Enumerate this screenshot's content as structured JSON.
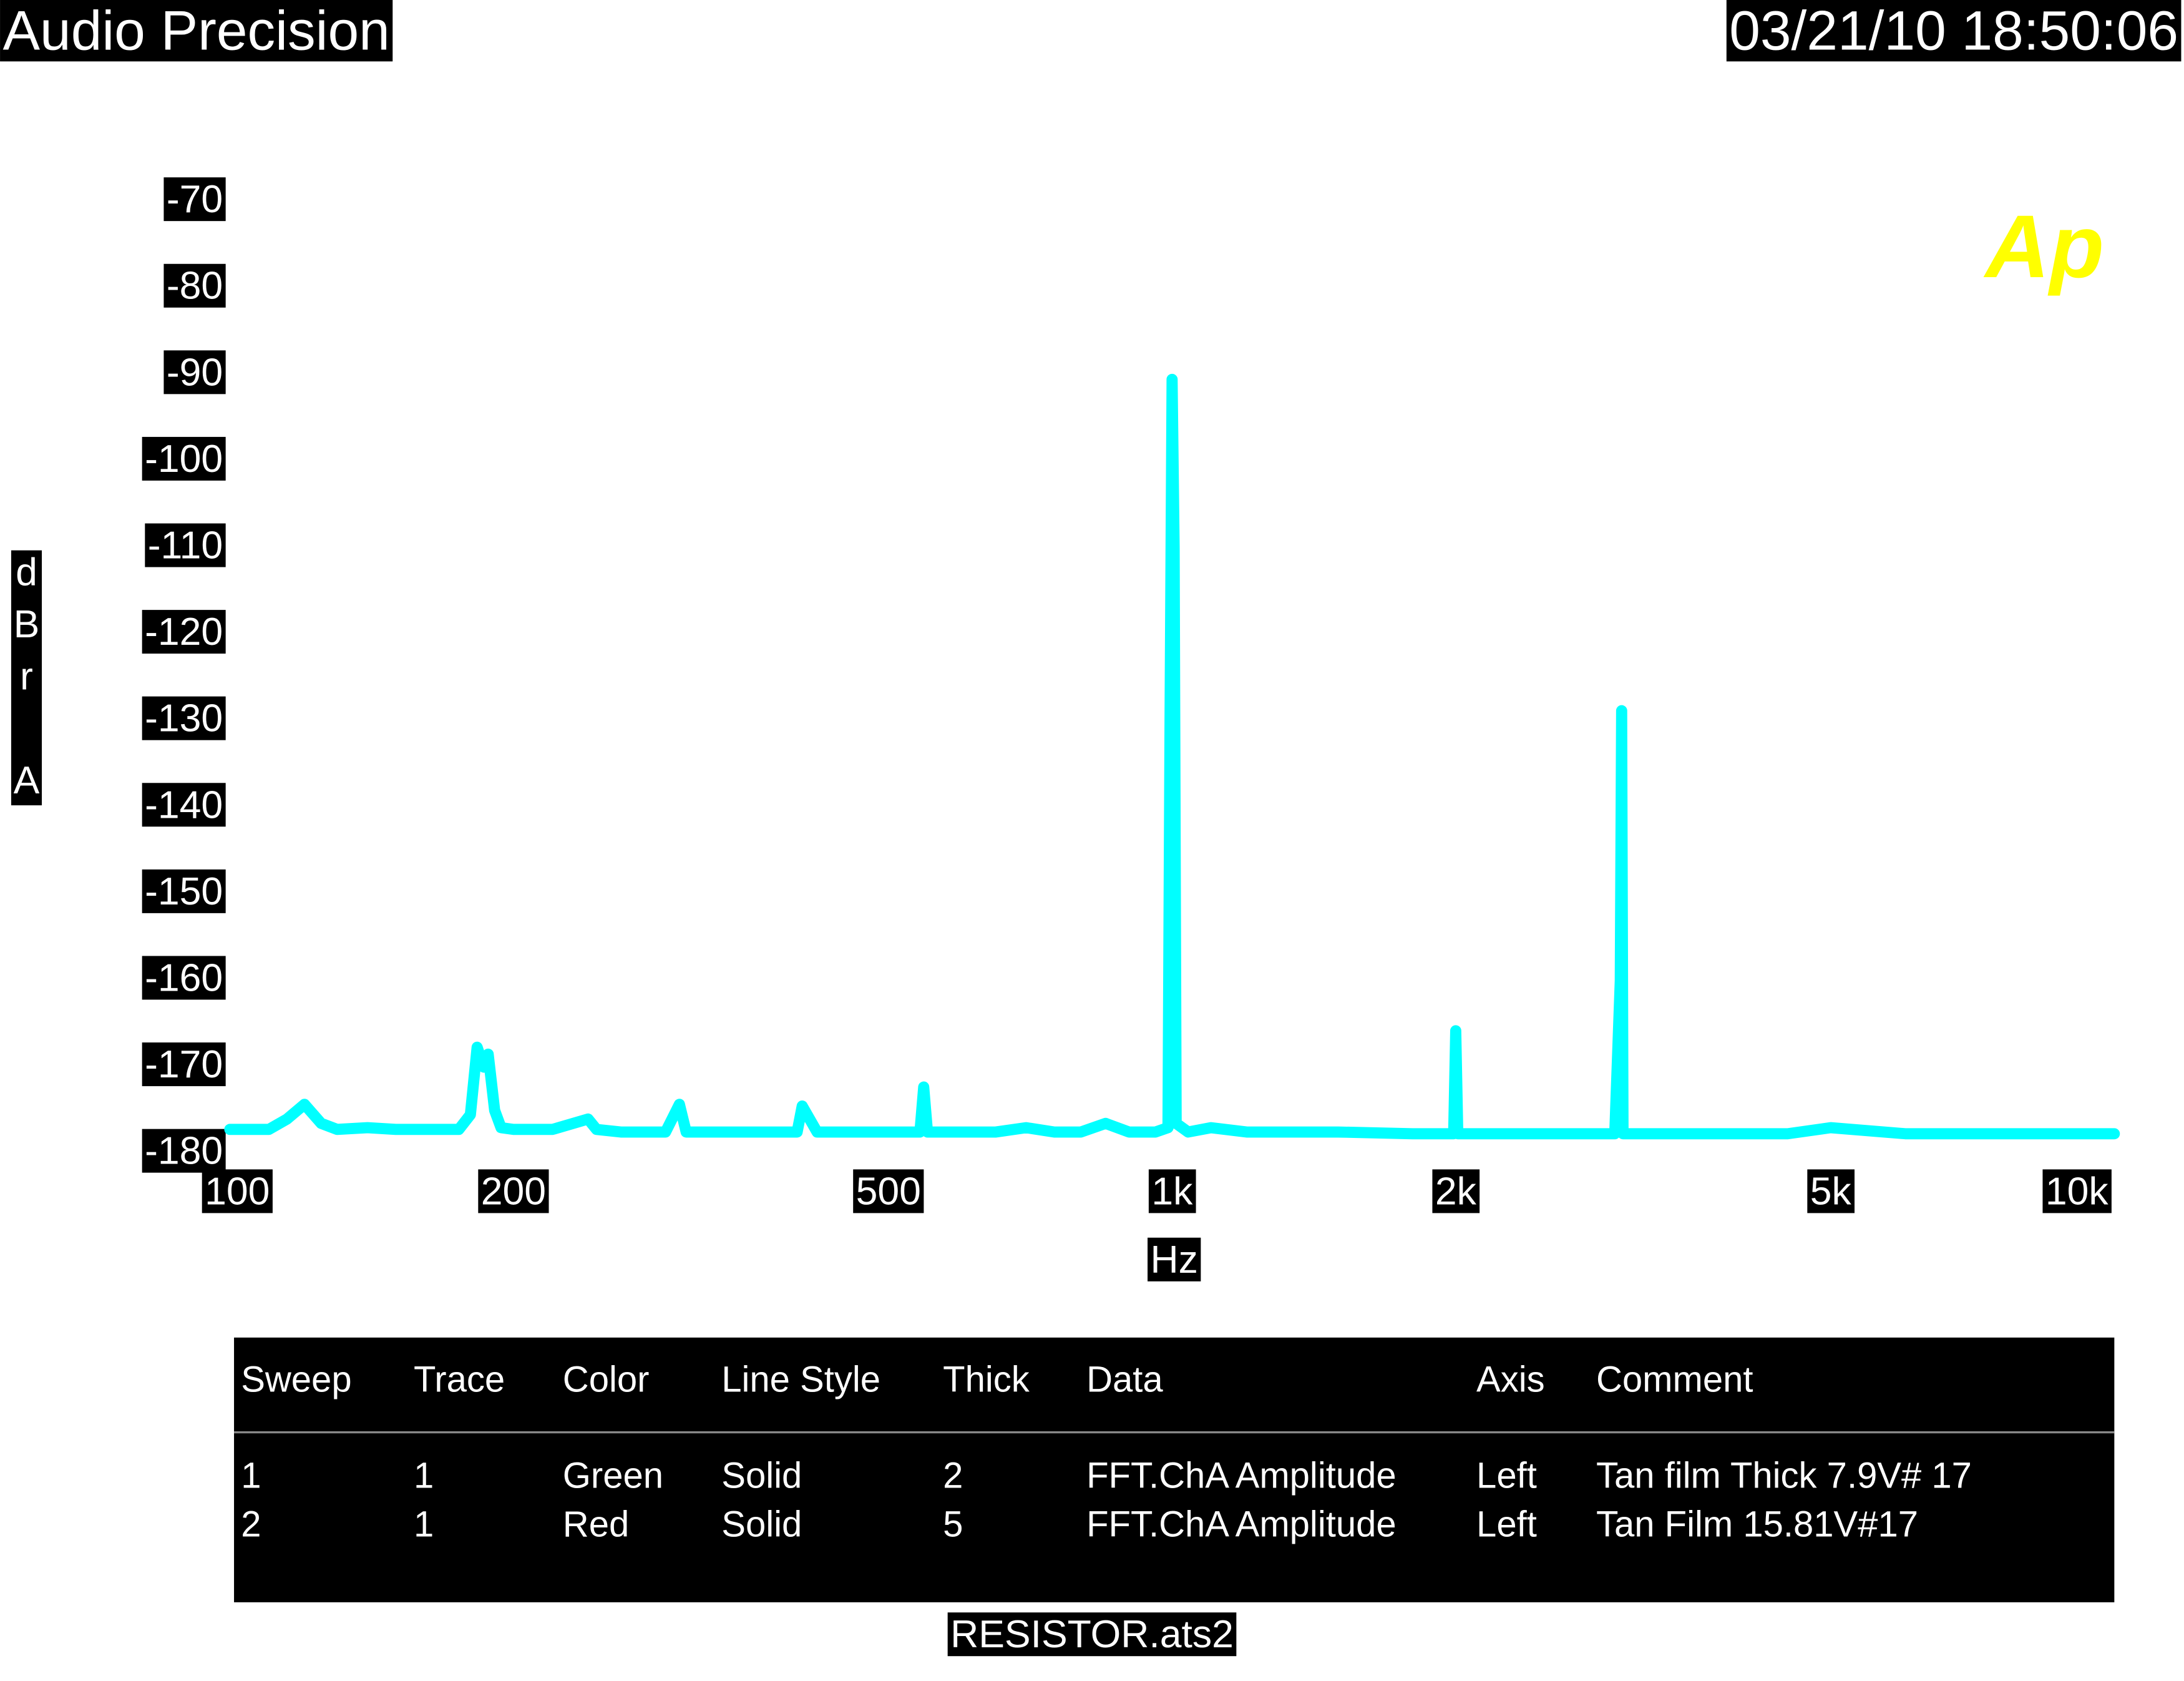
{
  "header": {
    "brand": "Audio Precision",
    "timestamp": "03/21/10 18:50:06",
    "logo": "Ap"
  },
  "chart_data": {
    "type": "line",
    "xlabel": "Hz",
    "ylabel": "dBr A",
    "xscale": "log",
    "xlim": [
      100,
      10000
    ],
    "ylim": [
      -180,
      -70
    ],
    "xticks": [
      100,
      200,
      500,
      {
        "value": 1000,
        "label": "1k"
      },
      {
        "value": 2000,
        "label": "2k"
      },
      {
        "value": 5000,
        "label": "5k"
      },
      {
        "value": 10000,
        "label": "10k"
      }
    ],
    "yticks": [
      -70,
      -80,
      -90,
      -100,
      -110,
      -120,
      -130,
      -140,
      -150,
      -160,
      -170,
      -180
    ],
    "x": [
      100,
      110,
      115,
      120,
      125,
      130,
      140,
      150,
      160,
      175,
      180,
      183,
      186,
      188,
      191,
      194,
      200,
      220,
      240,
      245,
      260,
      290,
      300,
      305,
      320,
      350,
      400,
      405,
      420,
      480,
      540,
      545,
      550,
      560,
      600,
      650,
      700,
      750,
      800,
      850,
      900,
      960,
      990,
      995,
      1000,
      1005,
      1010,
      1040,
      1100,
      1200,
      1300,
      1500,
      1800,
      1990,
      2000,
      2010,
      2200,
      2500,
      2950,
      2990,
      3000,
      3010,
      3100,
      3500,
      4000,
      4500,
      5000,
      6000,
      7000,
      8000,
      9000,
      10000
    ],
    "series": [
      {
        "color": "#00ffff",
        "values": [
          -177.2,
          -177.2,
          -176.0,
          -174.3,
          -176.5,
          -177.2,
          -177.0,
          -177.2,
          -177.2,
          -177.2,
          -175.5,
          -167.7,
          -170.0,
          -168.5,
          -175.0,
          -177.0,
          -177.2,
          -177.2,
          -176.0,
          -177.2,
          -177.5,
          -177.5,
          -174.3,
          -177.5,
          -177.5,
          -177.5,
          -177.5,
          -174.5,
          -177.5,
          -177.5,
          -177.5,
          -172.3,
          -177.5,
          -177.5,
          -177.5,
          -177.5,
          -177.0,
          -177.5,
          -177.5,
          -176.5,
          -177.5,
          -177.5,
          -177.0,
          -130.0,
          -90.5,
          -110.0,
          -176.5,
          -177.5,
          -177.0,
          -177.5,
          -177.5,
          -177.5,
          -177.7,
          -177.7,
          -165.8,
          -177.7,
          -177.7,
          -177.7,
          -177.7,
          -160.0,
          -128.8,
          -177.7,
          -177.7,
          -177.7,
          -177.7,
          -177.7,
          -177.0,
          -177.7,
          -177.7,
          -177.7,
          -177.7,
          -177.7
        ]
      }
    ]
  },
  "legend_table": {
    "header": [
      "Sweep",
      "Trace",
      "Color",
      "Line Style",
      "Thick",
      "Data",
      "Axis",
      "Comment"
    ],
    "rows": [
      [
        "1",
        "1",
        "Green",
        "Solid",
        "2",
        "FFT.ChA Amplitude",
        "Left",
        "Tan film Thick 7.9V# 17"
      ],
      [
        "2",
        "1",
        "Red",
        "Solid",
        "5",
        "FFT.ChA Amplitude",
        "Left",
        "Tan Film 15.81V#17"
      ]
    ]
  },
  "footer": "RESISTOR.ats2"
}
